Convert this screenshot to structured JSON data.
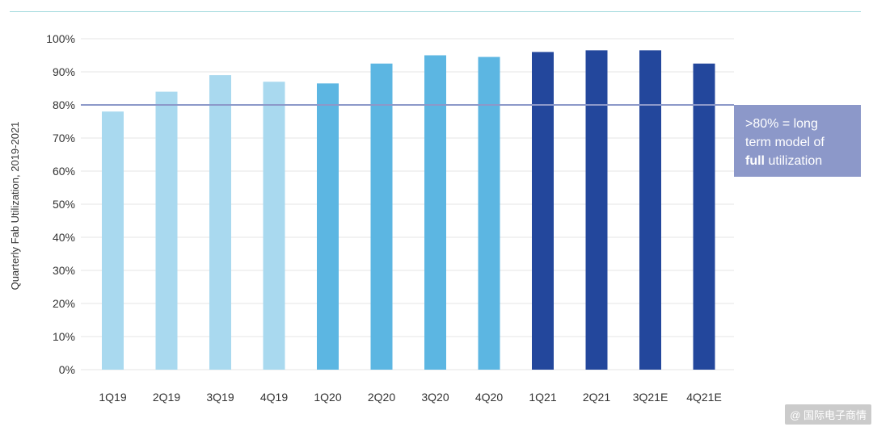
{
  "chart_data": {
    "type": "bar",
    "ylabel": "Quarterly Fab Utilization, 2019-2021",
    "categories": [
      "1Q19",
      "2Q19",
      "3Q19",
      "4Q19",
      "1Q20",
      "2Q20",
      "3Q20",
      "4Q20",
      "1Q21",
      "2Q21",
      "3Q21E",
      "4Q21E"
    ],
    "values": [
      78,
      84,
      89,
      87,
      86.5,
      92.5,
      95,
      94.5,
      96,
      96.5,
      96.5,
      92.5
    ],
    "bar_colors": [
      "#a9d9ef",
      "#a9d9ef",
      "#a9d9ef",
      "#a9d9ef",
      "#5cb6e2",
      "#5cb6e2",
      "#5cb6e2",
      "#5cb6e2",
      "#23479c",
      "#23479c",
      "#23479c",
      "#23479c"
    ],
    "ylim": [
      0,
      100
    ],
    "yticks": [
      "0%",
      "10%",
      "20%",
      "30%",
      "40%",
      "50%",
      "60%",
      "70%",
      "80%",
      "90%",
      "100%"
    ],
    "grid": true,
    "reference_line": {
      "value": 80,
      "color": "#8c98c9"
    },
    "annotation": {
      "line1": ">80% = long",
      "line2": "term model of",
      "line3_bold": "full",
      "line3_rest": " utilization",
      "color": "#8c98c9"
    }
  },
  "watermark": {
    "icon": "at-icon",
    "text": "@ 国际电子商情"
  }
}
